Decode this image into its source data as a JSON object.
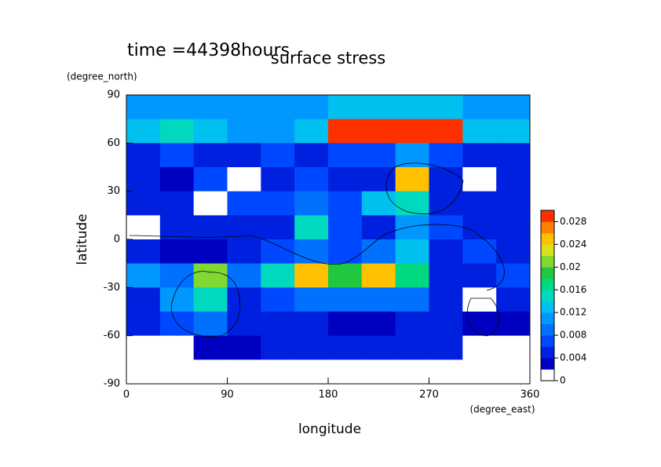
{
  "chart_data": {
    "type": "contour",
    "title": "surface stress",
    "subtitle": "time =44398hours",
    "x_label": "longitude",
    "x_unit": "(degree_east)",
    "y_label": "latitude",
    "y_unit": "(degree_north)",
    "xlim": [
      0,
      360
    ],
    "ylim": [
      -90,
      90
    ],
    "xticks": [
      0,
      90,
      180,
      270,
      360
    ],
    "yticks": [
      -90,
      -60,
      -30,
      0,
      30,
      60,
      90
    ],
    "x": [
      15,
      45,
      75,
      105,
      135,
      165,
      195,
      225,
      255,
      285,
      315,
      345
    ],
    "y": [
      82.5,
      67.5,
      52.5,
      37.5,
      22.5,
      7.5,
      -7.5,
      -22.5,
      -37.5,
      -52.5,
      -67.5,
      -82.5
    ],
    "z": [
      [
        0.01,
        0.01,
        0.01,
        0.01,
        0.01,
        0.01,
        0.012,
        0.012,
        0.012,
        0.012,
        0.01,
        0.01
      ],
      [
        0.012,
        0.014,
        0.012,
        0.01,
        0.01,
        0.012,
        0.03,
        0.03,
        0.03,
        0.028,
        0.012,
        0.012
      ],
      [
        0.004,
        0.006,
        0.004,
        0.004,
        0.006,
        0.004,
        0.006,
        0.006,
        0.01,
        0.006,
        0.004,
        0.004
      ],
      [
        0.004,
        0.003,
        0.006,
        0.001,
        0.004,
        0.006,
        0.004,
        0.005,
        0.024,
        0.004,
        0.001,
        0.004
      ],
      [
        0.004,
        0.004,
        0.001,
        0.006,
        0.006,
        0.008,
        0.006,
        0.012,
        0.014,
        0.004,
        0.004,
        0.004
      ],
      [
        0.001,
        0.004,
        0.005,
        0.004,
        0.004,
        0.014,
        0.006,
        0.004,
        0.01,
        0.006,
        0.004,
        0.004
      ],
      [
        0.004,
        0.003,
        0.002,
        0.005,
        0.006,
        0.008,
        0.006,
        0.008,
        0.012,
        0.004,
        0.006,
        0.004
      ],
      [
        0.01,
        0.008,
        0.02,
        0.008,
        0.014,
        0.024,
        0.018,
        0.024,
        0.016,
        0.004,
        0.004,
        0.006
      ],
      [
        0.004,
        0.01,
        0.014,
        0.004,
        0.006,
        0.008,
        0.008,
        0.008,
        0.008,
        0.004,
        0.001,
        0.004
      ],
      [
        0.004,
        0.006,
        0.008,
        0.004,
        0.004,
        0.004,
        0.003,
        0.003,
        0.004,
        0.004,
        0.002,
        0.003
      ],
      [
        0.001,
        0.001,
        0.002,
        0.002,
        0.004,
        0.004,
        0.004,
        0.004,
        0.004,
        0.004,
        0.001,
        0.001
      ],
      [
        0,
        0,
        0,
        0,
        0,
        0,
        0,
        0,
        0,
        0,
        0,
        0
      ]
    ],
    "clim": [
      0,
      0.03
    ],
    "cticks": [
      0,
      0.004,
      0.008,
      0.012,
      0.016,
      0.02,
      0.024,
      0.028
    ],
    "colormap": [
      "#ffffff",
      "#0000c0",
      "#0020e0",
      "#0048ff",
      "#0070ff",
      "#0098ff",
      "#00c0f0",
      "#00d8c0",
      "#00d880",
      "#20c840",
      "#80d830",
      "#d8e020",
      "#ffc000",
      "#ff8000",
      "#ff3000"
    ]
  }
}
